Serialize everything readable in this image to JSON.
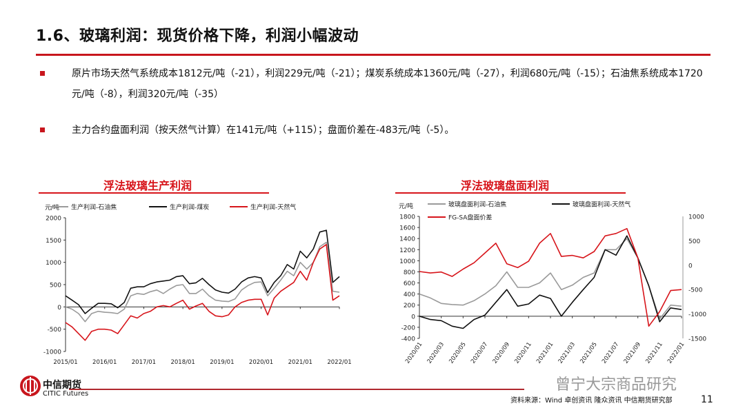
{
  "header": {
    "title": "1.6、玻璃利润：现货价格下降，利润小幅波动"
  },
  "bullets": [
    "原片市场天然气系统成本1812元/吨（-21），利润229元/吨（-21）；煤炭系统成本1360元/吨（-27），利润680元/吨（-15）；石油焦系统成本1720 元/吨（-8），利润320元/吨（-35）",
    "主力合约盘面利润（按天然气计算）在141元/吨（+115）；盘面价差在-483元/吨（-5）。"
  ],
  "chart_data": [
    {
      "type": "line",
      "title": "浮法玻璃生产利润",
      "ylabel": "元/吨",
      "ylim": [
        -1000,
        2000
      ],
      "yticks": [
        "-1000",
        "-500",
        "0",
        "500",
        "1000",
        "1500",
        "2000"
      ],
      "xticks": [
        "2015/01",
        "2016/01",
        "2017/01",
        "2018/01",
        "2019/01",
        "2020/01",
        "2021/01",
        "2022/01"
      ],
      "legend": "top",
      "grid": false,
      "x": [
        "2015/01",
        "2015/03",
        "2015/05",
        "2015/07",
        "2015/09",
        "2015/11",
        "2016/01",
        "2016/03",
        "2016/05",
        "2016/07",
        "2016/09",
        "2016/11",
        "2017/01",
        "2017/03",
        "2017/05",
        "2017/07",
        "2017/09",
        "2017/11",
        "2018/01",
        "2018/03",
        "2018/05",
        "2018/07",
        "2018/09",
        "2018/11",
        "2019/01",
        "2019/03",
        "2019/05",
        "2019/07",
        "2019/09",
        "2019/11",
        "2020/01",
        "2020/03",
        "2020/05",
        "2020/07",
        "2020/09",
        "2020/11",
        "2021/01",
        "2021/03",
        "2021/05",
        "2021/07",
        "2021/09",
        "2021/11",
        "2022/01"
      ],
      "series": [
        {
          "name": "生产利润-石油焦",
          "color": "#9a9a9a",
          "values": [
            0,
            -50,
            -150,
            -330,
            -150,
            -100,
            -120,
            -130,
            -150,
            -50,
            250,
            300,
            280,
            340,
            380,
            300,
            400,
            480,
            500,
            300,
            300,
            400,
            250,
            150,
            130,
            120,
            180,
            380,
            480,
            550,
            560,
            250,
            420,
            600,
            800,
            700,
            1000,
            850,
            1000,
            1350,
            1450,
            350,
            330
          ]
        },
        {
          "name": "生产利润-煤炭",
          "color": "#111111",
          "values": [
            250,
            150,
            50,
            -150,
            -30,
            80,
            80,
            70,
            -20,
            100,
            420,
            450,
            450,
            520,
            560,
            580,
            600,
            680,
            700,
            520,
            540,
            640,
            500,
            380,
            330,
            310,
            400,
            560,
            650,
            680,
            650,
            320,
            550,
            700,
            950,
            850,
            1250,
            1100,
            1300,
            1680,
            1720,
            550,
            680
          ]
        },
        {
          "name": "生产利润-天然气",
          "color": "#d7141a",
          "values": [
            -350,
            -450,
            -600,
            -750,
            -550,
            -500,
            -500,
            -520,
            -600,
            -400,
            -200,
            -250,
            -150,
            -100,
            0,
            30,
            0,
            80,
            150,
            -50,
            20,
            80,
            -100,
            -200,
            -220,
            -180,
            0,
            100,
            150,
            170,
            170,
            -180,
            200,
            350,
            450,
            550,
            800,
            600,
            1000,
            1300,
            1400,
            150,
            250
          ]
        }
      ]
    },
    {
      "type": "line",
      "title": "浮法玻璃盘面利润",
      "ylabel": "元/吨",
      "ylim": [
        -400,
        1800
      ],
      "y2lim": [
        -1500,
        1000
      ],
      "yticks": [
        "-400",
        "-200",
        "0",
        "200",
        "400",
        "600",
        "800",
        "1000",
        "1200",
        "1400",
        "1600",
        "1800"
      ],
      "y2ticks": [
        "-1500",
        "-1000",
        "-500",
        "0",
        "500",
        "1000"
      ],
      "xticks": [
        "2020/01",
        "2020/03",
        "2020/05",
        "2020/07",
        "2020/09",
        "2020/11",
        "2021/01",
        "2021/03",
        "2021/05",
        "2021/07",
        "2021/09",
        "2021/11",
        "2022/01"
      ],
      "legend": "top",
      "grid": false,
      "x": [
        "2020/01",
        "2020/02",
        "2020/03",
        "2020/04",
        "2020/05",
        "2020/06",
        "2020/07",
        "2020/08",
        "2020/09",
        "2020/10",
        "2020/11",
        "2020/12",
        "2021/01",
        "2021/02",
        "2021/03",
        "2021/04",
        "2021/05",
        "2021/06",
        "2021/07",
        "2021/08",
        "2021/09",
        "2021/10",
        "2021/11",
        "2021/12",
        "2022/01"
      ],
      "series": [
        {
          "name": "玻璃盘面利润-石油焦",
          "color": "#9a9a9a",
          "axis": "left",
          "values": [
            400,
            330,
            230,
            210,
            200,
            280,
            400,
            550,
            800,
            520,
            520,
            600,
            780,
            480,
            560,
            700,
            780,
            1200,
            1200,
            1400,
            1050,
            550,
            -50,
            200,
            180
          ]
        },
        {
          "name": "玻璃盘面利润-天然气",
          "color": "#111111",
          "axis": "left",
          "values": [
            0,
            -60,
            -80,
            -180,
            -220,
            -60,
            20,
            250,
            480,
            180,
            220,
            380,
            320,
            0,
            250,
            480,
            700,
            1200,
            1100,
            1450,
            1050,
            550,
            -100,
            150,
            120
          ]
        },
        {
          "name": "FG-SA盘面价差",
          "color": "#d7141a",
          "axis": "right",
          "values": [
            -130,
            -160,
            -140,
            -230,
            -80,
            50,
            250,
            450,
            30,
            -50,
            80,
            450,
            650,
            180,
            200,
            150,
            280,
            600,
            650,
            750,
            150,
            -1250,
            -950,
            -520,
            -500
          ]
        }
      ]
    }
  ],
  "footer": {
    "logo_cn": "中信期货",
    "logo_en": "CITIC Futures",
    "watermark": "曾宁大宗商品研究",
    "source": "资料来源：Wind 卓创资讯 隆众资讯 中信期货研究部",
    "page": "11"
  }
}
